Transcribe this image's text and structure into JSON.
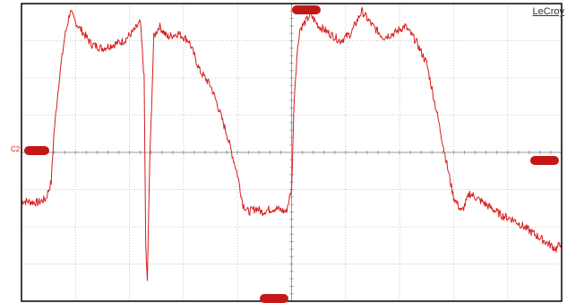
{
  "brand": "LeCroy",
  "channel": {
    "label": "C2",
    "color": "#d81c1c"
  },
  "markers": {
    "trigger_top": "",
    "channel_offset": "",
    "trigger_level": "",
    "time_position": ""
  },
  "colors": {
    "trace": "#d81c1c",
    "frame": "#000000",
    "grid": "#c8c8c8",
    "center_axis": "#9a9a9a",
    "marker_bg": "#c41818"
  },
  "chart_data": {
    "type": "line",
    "title": "",
    "xlabel": "",
    "ylabel": "",
    "xlim": [
      0,
      10
    ],
    "ylim": [
      -4,
      4
    ],
    "grid": true,
    "series": [
      {
        "x": [
          0,
          0.3,
          0.45,
          0.55,
          0.6,
          0.7,
          0.8,
          0.9,
          1.0,
          1.1,
          1.2,
          1.3,
          1.5,
          1.7,
          1.9,
          2.1,
          2.2,
          2.27,
          2.3,
          2.33,
          2.37,
          2.45,
          2.55,
          2.7,
          2.9,
          3.1,
          3.3,
          3.5,
          3.6,
          3.8,
          4.0,
          4.1,
          4.2,
          4.35,
          4.45,
          4.55,
          4.7,
          4.9,
          5.0,
          5.05,
          5.1,
          5.15,
          5.25,
          5.35,
          5.5,
          5.7,
          5.9,
          6.1,
          6.3,
          6.5,
          6.7,
          6.9,
          7.1,
          7.3,
          7.5,
          7.7,
          7.9,
          8.0,
          8.15,
          8.3,
          8.5,
          8.7,
          8.9,
          9.1,
          9.3,
          9.5,
          9.7,
          9.9,
          10.0
        ],
        "y": [
          -1.3,
          -1.35,
          -1.25,
          -0.8,
          0.5,
          2.0,
          3.1,
          3.8,
          3.5,
          3.3,
          3.1,
          2.9,
          2.8,
          2.9,
          3.0,
          3.3,
          3.5,
          2.0,
          -2.5,
          -3.5,
          -0.5,
          3.1,
          3.4,
          3.1,
          3.2,
          3.0,
          2.2,
          1.8,
          1.4,
          0.5,
          -0.6,
          -1.4,
          -1.6,
          -1.5,
          -1.6,
          -1.55,
          -1.5,
          -1.6,
          -1.0,
          1.5,
          2.6,
          3.3,
          3.5,
          3.7,
          3.4,
          3.2,
          3.0,
          3.2,
          3.8,
          3.4,
          3.1,
          3.2,
          3.4,
          3.0,
          2.4,
          1.0,
          -0.5,
          -1.2,
          -1.6,
          -1.1,
          -1.3,
          -1.5,
          -1.7,
          -1.8,
          -2.0,
          -2.2,
          -2.4,
          -2.6,
          -2.4
        ]
      }
    ]
  }
}
